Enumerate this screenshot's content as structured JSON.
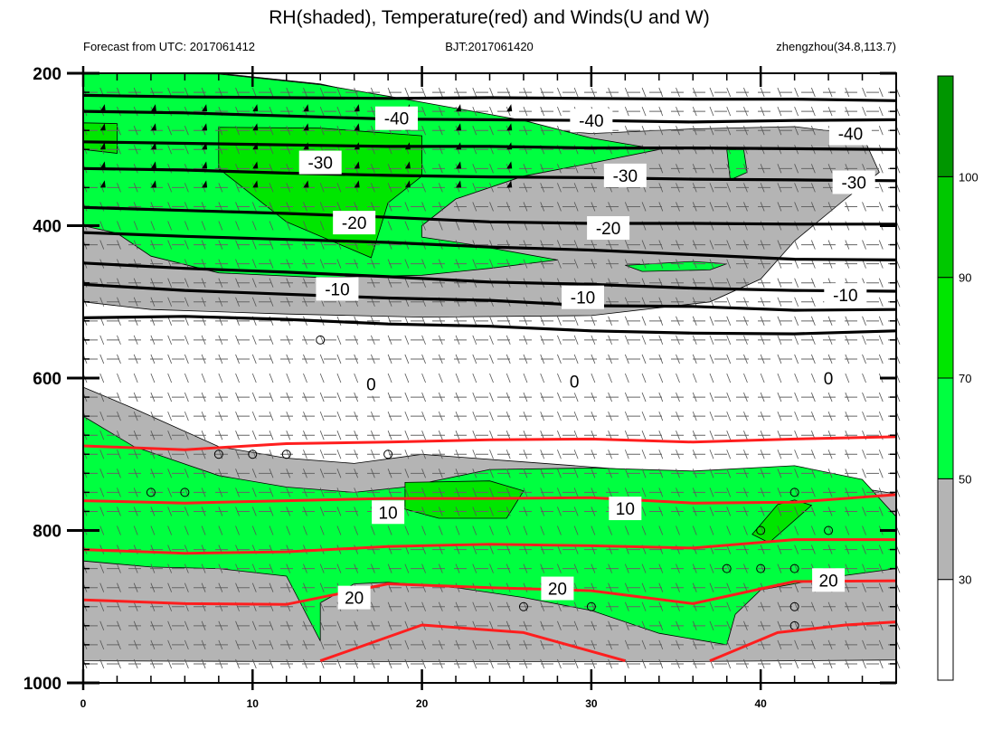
{
  "chart_data": {
    "type": "contour",
    "title": "RH(shaded), Temperature(red) and Winds(U and W)",
    "subtitle_left": "Forecast from UTC: 2017061412",
    "subtitle_center": "BJT:2017061420",
    "subtitle_right": "zhengzhou(34.8,113.7)",
    "x_axis": {
      "range": [
        0,
        48
      ],
      "ticks": [
        "0",
        "10",
        "20",
        "30",
        "40"
      ],
      "tick_values": [
        0,
        10,
        20,
        30,
        40
      ]
    },
    "y_axis": {
      "range": [
        200,
        1000
      ],
      "reversed": true,
      "ticks": [
        "200",
        "400",
        "600",
        "800",
        "1000"
      ],
      "tick_values": [
        200,
        400,
        600,
        800,
        1000
      ]
    },
    "colorbar": {
      "levels": [
        "30",
        "50",
        "70",
        "90",
        "100"
      ],
      "level_values": [
        30,
        50,
        70,
        90,
        100
      ],
      "colors": [
        "#ffffff",
        "#b4b4b4",
        "#00ff40",
        "#00e600",
        "#00c800",
        "#009600"
      ]
    },
    "colors": {
      "black_contour": "#000000",
      "red_contour": "#ff1e1e",
      "gray_fill": "#b4b4b4",
      "green_fill": "#00ff40"
    },
    "temperature_black_contours": [
      {
        "label": "-40",
        "points": [
          [
            0,
            229
          ],
          [
            6,
            231
          ],
          [
            12,
            232
          ],
          [
            18,
            233
          ],
          [
            24,
            232
          ],
          [
            30,
            233
          ],
          [
            36,
            234
          ],
          [
            42,
            234
          ],
          [
            48,
            236
          ]
        ]
      },
      {
        "label": "-40",
        "points": [
          [
            0,
            250
          ],
          [
            6,
            252
          ],
          [
            12,
            256
          ],
          [
            18,
            260
          ],
          [
            24,
            261
          ],
          [
            30,
            262
          ],
          [
            36,
            264
          ],
          [
            42,
            262
          ],
          [
            48,
            261
          ]
        ]
      },
      {
        "label": "-40",
        "points": [
          [
            0,
            290
          ],
          [
            6,
            292
          ],
          [
            12,
            294
          ],
          [
            18,
            296
          ],
          [
            24,
            296
          ],
          [
            30,
            298
          ],
          [
            36,
            298
          ],
          [
            42,
            299
          ],
          [
            48,
            300
          ]
        ]
      },
      {
        "label": "-30",
        "points": [
          [
            0,
            325
          ],
          [
            6,
            327
          ],
          [
            12,
            331
          ],
          [
            18,
            334
          ],
          [
            24,
            336
          ],
          [
            30,
            337
          ],
          [
            36,
            339
          ],
          [
            42,
            340
          ],
          [
            48,
            341
          ]
        ]
      },
      {
        "label": "-20",
        "points": [
          [
            0,
            376
          ],
          [
            6,
            380
          ],
          [
            12,
            384
          ],
          [
            18,
            389
          ],
          [
            24,
            395
          ],
          [
            30,
            397
          ],
          [
            36,
            397
          ],
          [
            42,
            398
          ],
          [
            48,
            398
          ]
        ]
      },
      {
        "label": "-20",
        "points": [
          [
            0,
            409
          ],
          [
            6,
            414
          ],
          [
            12,
            418
          ],
          [
            18,
            422
          ],
          [
            24,
            428
          ],
          [
            30,
            432
          ],
          [
            36,
            438
          ],
          [
            42,
            444
          ],
          [
            48,
            445
          ]
        ]
      },
      {
        "label": "-10",
        "points": [
          [
            0,
            449
          ],
          [
            6,
            456
          ],
          [
            12,
            461
          ],
          [
            18,
            467
          ],
          [
            24,
            474
          ],
          [
            30,
            477
          ],
          [
            36,
            482
          ],
          [
            42,
            485
          ],
          [
            48,
            486
          ]
        ]
      },
      {
        "label": "-10",
        "points": [
          [
            0,
            477
          ],
          [
            6,
            485
          ],
          [
            12,
            490
          ],
          [
            18,
            495
          ],
          [
            24,
            498
          ],
          [
            30,
            505
          ],
          [
            36,
            506
          ],
          [
            42,
            511
          ],
          [
            48,
            510
          ]
        ]
      },
      {
        "label": "0",
        "points": [
          [
            0,
            521
          ],
          [
            6,
            519
          ],
          [
            12,
            523
          ],
          [
            18,
            529
          ],
          [
            24,
            532
          ],
          [
            30,
            538
          ],
          [
            36,
            541
          ],
          [
            42,
            542
          ],
          [
            48,
            538
          ]
        ]
      }
    ],
    "temperature_red_contours": [
      {
        "label": "10",
        "points": [
          [
            0,
            689
          ],
          [
            6,
            694
          ],
          [
            12,
            686
          ],
          [
            18,
            684
          ],
          [
            24,
            681
          ],
          [
            30,
            680
          ],
          [
            36,
            684
          ],
          [
            42,
            680
          ],
          [
            48,
            677
          ]
        ]
      },
      {
        "label": "10",
        "points": [
          [
            0,
            761
          ],
          [
            6,
            764
          ],
          [
            12,
            761
          ],
          [
            18,
            758
          ],
          [
            24,
            758
          ],
          [
            30,
            757
          ],
          [
            36,
            764
          ],
          [
            42,
            763
          ],
          [
            48,
            753
          ]
        ]
      },
      {
        "label": "20",
        "points": [
          [
            0,
            825
          ],
          [
            6,
            830
          ],
          [
            12,
            828
          ],
          [
            18,
            821
          ],
          [
            24,
            818
          ],
          [
            30,
            820
          ],
          [
            36,
            823
          ],
          [
            42,
            812
          ],
          [
            48,
            812
          ]
        ]
      },
      {
        "label": "20",
        "points": [
          [
            0,
            891
          ],
          [
            6,
            896
          ],
          [
            12,
            897
          ],
          [
            18,
            870
          ],
          [
            24,
            875
          ],
          [
            30,
            879
          ],
          [
            36,
            896
          ],
          [
            42,
            867
          ],
          [
            48,
            866
          ]
        ]
      },
      {
        "label": "",
        "points": [
          [
            14,
            971
          ],
          [
            20,
            924
          ],
          [
            26,
            934
          ],
          [
            32,
            971
          ]
        ]
      },
      {
        "label": "",
        "points": [
          [
            37,
            971
          ],
          [
            41,
            934
          ],
          [
            45,
            924
          ],
          [
            48,
            920
          ]
        ]
      }
    ],
    "series": [
      {
        "name": "RH",
        "values": []
      },
      {
        "name": "Temperature",
        "values": []
      },
      {
        "name": "U",
        "values": []
      },
      {
        "name": "W",
        "values": []
      }
    ]
  }
}
